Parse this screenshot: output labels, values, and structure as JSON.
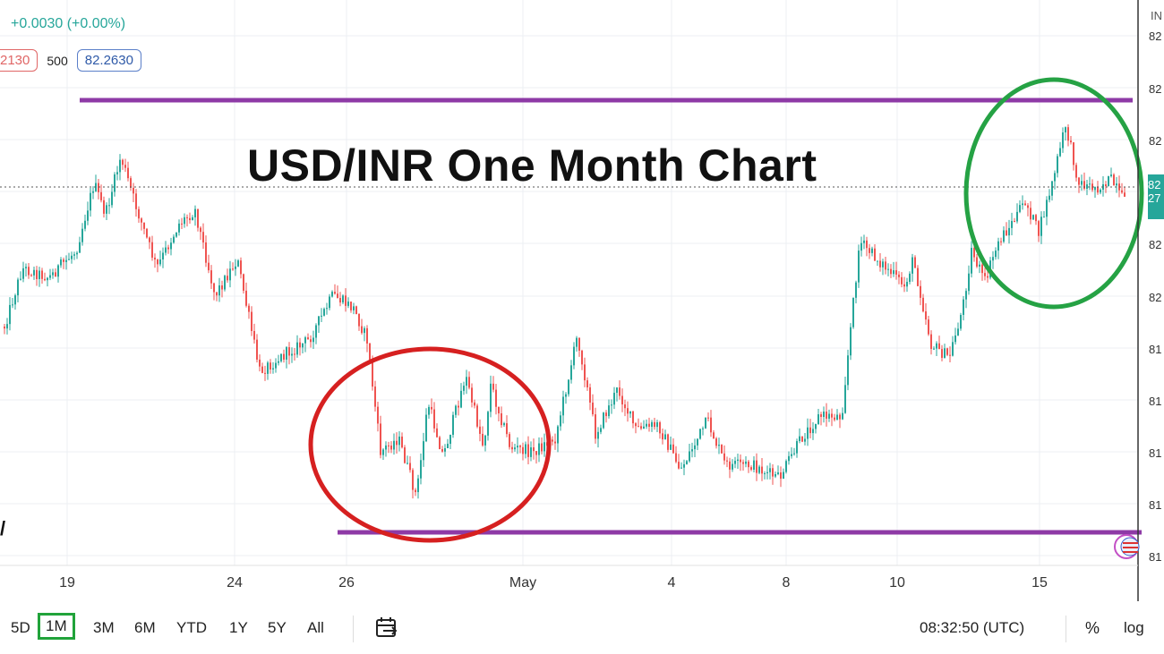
{
  "header": {
    "change": "+0.0030 (+0.00%)",
    "bid": "2130",
    "spread": "500",
    "ask": "82.2630",
    "symbol_fragment": "IN",
    "left_glyph": "/"
  },
  "title": "USD/INR One Month Chart",
  "price_axis": {
    "labels": [
      "82",
      "82",
      "82",
      "82",
      "82",
      "81",
      "81",
      "81",
      "81",
      "81"
    ],
    "last_price_tag": [
      "82",
      "27"
    ]
  },
  "x_axis_labels": [
    "19",
    "24",
    "26",
    "May",
    "4",
    "8",
    "10",
    "15"
  ],
  "toolbar": {
    "timeframes": [
      "5D",
      "1M",
      "3M",
      "6M",
      "YTD",
      "1Y",
      "5Y",
      "All"
    ],
    "active_timeframe": "1M",
    "clock": "08:32:50 (UTC)",
    "percent_label": "%",
    "log_label": "log"
  },
  "colors": {
    "up": "#26a69a",
    "down": "#ef5350",
    "resistance_line": "#8e3aa6",
    "red_circle": "#d62020",
    "green_circle": "#25a244"
  },
  "chart_data": {
    "type": "candlestick",
    "annotations": [
      "resistance-line",
      "support-line",
      "red-circle-range",
      "green-circle-peak"
    ],
    "x_labels": [
      "19",
      "24",
      "26",
      "May",
      "4",
      "8",
      "10",
      "15"
    ]
  }
}
